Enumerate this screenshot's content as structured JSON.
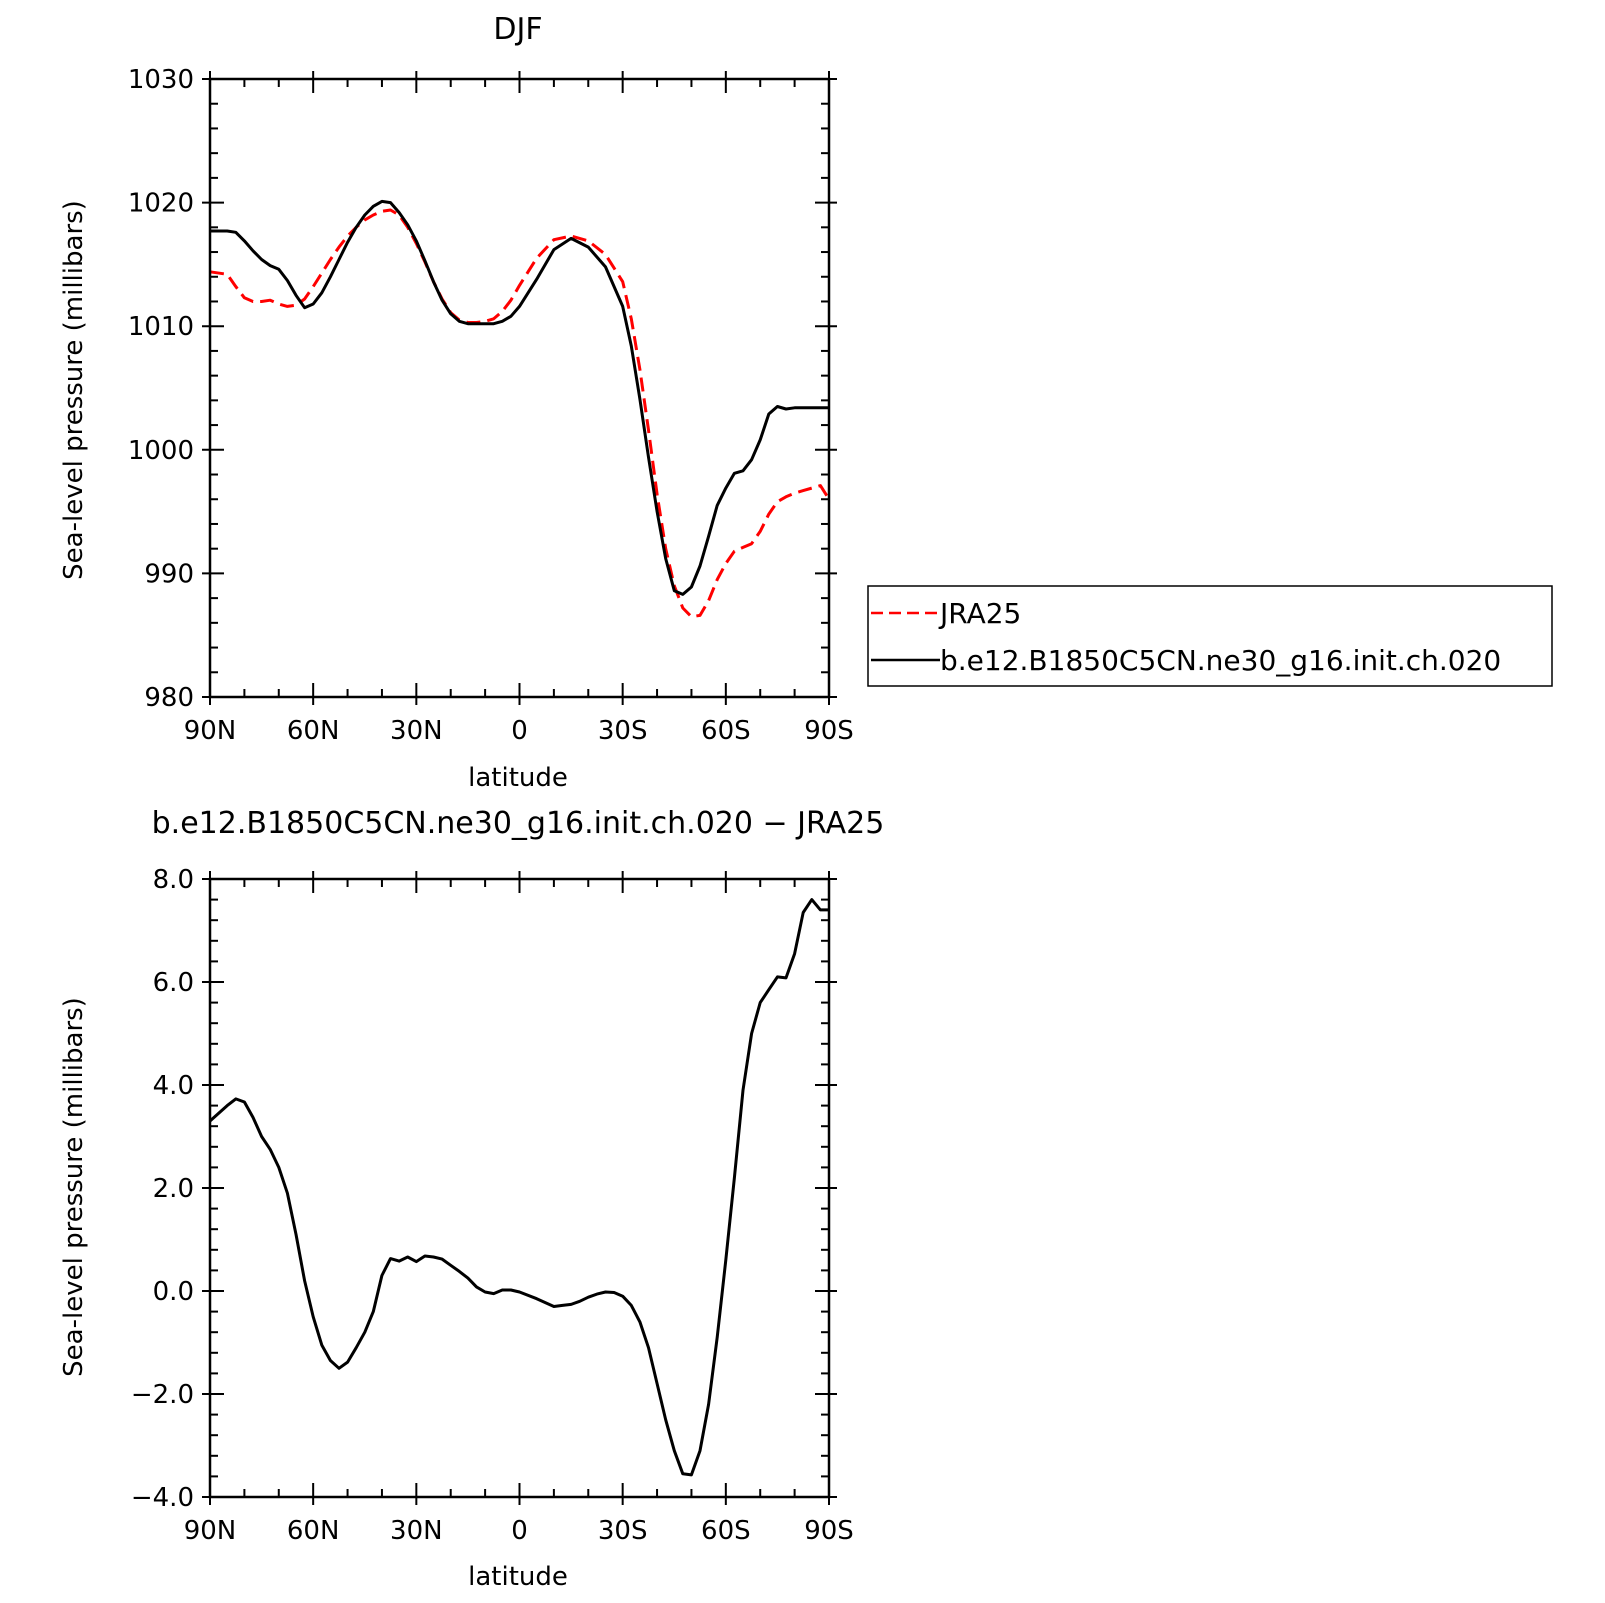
{
  "chart_data": [
    {
      "type": "line",
      "title": "DJF",
      "xlabel": "latitude",
      "ylabel": "Sea-level pressure (millibars)",
      "x_ticks": [
        {
          "value": 90,
          "label": "90N"
        },
        {
          "value": 60,
          "label": "60N"
        },
        {
          "value": 30,
          "label": "30N"
        },
        {
          "value": 0,
          "label": "0"
        },
        {
          "value": -30,
          "label": "30S"
        },
        {
          "value": -60,
          "label": "60S"
        },
        {
          "value": -90,
          "label": "90S"
        }
      ],
      "y_ticks": [
        {
          "value": 980,
          "label": "980"
        },
        {
          "value": 990,
          "label": "990"
        },
        {
          "value": 1000,
          "label": "1000"
        },
        {
          "value": 1010,
          "label": "1010"
        },
        {
          "value": 1020,
          "label": "1020"
        },
        {
          "value": 1030,
          "label": "1030"
        }
      ],
      "xlim": [
        90,
        -90
      ],
      "ylim": [
        980,
        1030
      ],
      "grid": false,
      "legend_position": "right",
      "series": [
        {
          "name": "JRA25",
          "color": "#ff0000",
          "dash": true,
          "x": [
            90,
            85,
            82.5,
            80,
            77.5,
            75,
            72.5,
            70,
            67.5,
            65,
            62.5,
            60,
            57.5,
            55,
            52.5,
            50,
            47.5,
            45,
            42.5,
            40,
            37.5,
            35,
            32.5,
            30,
            27.5,
            25,
            22.5,
            20,
            17.5,
            15,
            12.5,
            10,
            7.5,
            5,
            2.5,
            0,
            -5,
            -10,
            -15,
            -20,
            -25,
            -30,
            -32.5,
            -35,
            -37.5,
            -40,
            -42.5,
            -45,
            -47.5,
            -50,
            -52.5,
            -55,
            -57.5,
            -60,
            -62.5,
            -65,
            -67.5,
            -70,
            -72.5,
            -75,
            -77.5,
            -80,
            -82.5,
            -85,
            -87.5,
            -90
          ],
          "y": [
            1014.4,
            1014.2,
            1013.2,
            1012.3,
            1012.0,
            1012.0,
            1012.1,
            1011.8,
            1011.6,
            1011.7,
            1012.2,
            1013.2,
            1014.3,
            1015.4,
            1016.4,
            1017.3,
            1018.0,
            1018.6,
            1019.0,
            1019.3,
            1019.4,
            1019.0,
            1018.0,
            1016.7,
            1015.2,
            1013.6,
            1012.2,
            1011.1,
            1010.5,
            1010.3,
            1010.3,
            1010.4,
            1010.6,
            1011.2,
            1012.1,
            1013.3,
            1015.5,
            1017.0,
            1017.3,
            1016.9,
            1015.8,
            1013.6,
            1010.6,
            1006.5,
            1001.6,
            996.4,
            992.0,
            989.0,
            987.2,
            986.5,
            986.6,
            987.8,
            989.5,
            990.8,
            991.8,
            992.1,
            992.4,
            993.4,
            994.8,
            995.8,
            996.2,
            996.5,
            996.7,
            996.9,
            997.1,
            996.0
          ]
        },
        {
          "name": "b.e12.B1850C5CN.ne30_g16.init.ch.020",
          "color": "#000000",
          "dash": false,
          "x": [
            90,
            85,
            82.5,
            80,
            77.5,
            75,
            72.5,
            70,
            67.5,
            65,
            62.5,
            60,
            57.5,
            55,
            52.5,
            50,
            47.5,
            45,
            42.5,
            40,
            37.5,
            35,
            32.5,
            30,
            27.5,
            25,
            22.5,
            20,
            17.5,
            15,
            12.5,
            10,
            7.5,
            5,
            2.5,
            0,
            -5,
            -10,
            -15,
            -20,
            -25,
            -30,
            -32.5,
            -35,
            -37.5,
            -40,
            -42.5,
            -45,
            -47.5,
            -50,
            -52.5,
            -55,
            -57.5,
            -60,
            -62.5,
            -65,
            -67.5,
            -70,
            -72.5,
            -75,
            -77.5,
            -80,
            -82.5,
            -85,
            -87.5,
            -90
          ],
          "y": [
            1017.7,
            1017.7,
            1017.6,
            1016.9,
            1016.1,
            1015.4,
            1014.9,
            1014.6,
            1013.7,
            1012.5,
            1011.5,
            1011.8,
            1012.7,
            1014.0,
            1015.4,
            1016.8,
            1018.0,
            1019.0,
            1019.7,
            1020.1,
            1020.0,
            1019.2,
            1018.2,
            1016.9,
            1015.3,
            1013.6,
            1012.1,
            1011.0,
            1010.4,
            1010.2,
            1010.2,
            1010.2,
            1010.2,
            1010.4,
            1010.8,
            1011.6,
            1013.8,
            1016.2,
            1017.1,
            1016.4,
            1014.8,
            1011.6,
            1008.4,
            1004.1,
            999.4,
            995.0,
            991.2,
            988.6,
            988.3,
            988.9,
            990.6,
            993.0,
            995.5,
            996.9,
            998.1,
            998.3,
            999.2,
            1000.8,
            1002.9,
            1003.5,
            1003.3,
            1003.4,
            1003.4,
            1003.4,
            1003.4,
            1003.4
          ]
        }
      ]
    },
    {
      "type": "line",
      "title": "b.e12.B1850C5CN.ne30_g16.init.ch.020 − JRA25",
      "xlabel": "latitude",
      "ylabel": "Sea-level pressure (millibars)",
      "x_ticks": [
        {
          "value": 90,
          "label": "90N"
        },
        {
          "value": 60,
          "label": "60N"
        },
        {
          "value": 30,
          "label": "30N"
        },
        {
          "value": 0,
          "label": "0"
        },
        {
          "value": -30,
          "label": "30S"
        },
        {
          "value": -60,
          "label": "60S"
        },
        {
          "value": -90,
          "label": "90S"
        }
      ],
      "y_ticks": [
        {
          "value": -4,
          "label": "−4.0"
        },
        {
          "value": -2,
          "label": "−2.0"
        },
        {
          "value": 0,
          "label": "0.0"
        },
        {
          "value": 2,
          "label": "2.0"
        },
        {
          "value": 4,
          "label": "4.0"
        },
        {
          "value": 6,
          "label": "6.0"
        },
        {
          "value": 8,
          "label": "8.0"
        }
      ],
      "xlim": [
        90,
        -90
      ],
      "ylim": [
        -4,
        8
      ],
      "grid": false,
      "series": [
        {
          "color": "#000000",
          "x": [
            90,
            85,
            82.5,
            80,
            77.5,
            75,
            72.5,
            70,
            67.5,
            65,
            62.5,
            60,
            57.5,
            55,
            52.5,
            50,
            47.5,
            45,
            42.5,
            40,
            37.5,
            35,
            32.5,
            30,
            27.5,
            25,
            22.5,
            20,
            17.5,
            15,
            12.5,
            10,
            7.5,
            5,
            2.5,
            0,
            -5,
            -10,
            -12.5,
            -15,
            -17.5,
            -20,
            -22.5,
            -25,
            -27.5,
            -30,
            -32.5,
            -35,
            -37.5,
            -40,
            -42.5,
            -45,
            -47.5,
            -50,
            -52.5,
            -55,
            -57.5,
            -60,
            -62.5,
            -65,
            -67.5,
            -70,
            -72.5,
            -75,
            -77.5,
            -80,
            -82.5,
            -85,
            -87.5,
            -90
          ],
          "y": [
            3.3,
            3.6,
            3.73,
            3.67,
            3.37,
            3.0,
            2.75,
            2.4,
            1.9,
            1.1,
            0.2,
            -0.5,
            -1.05,
            -1.35,
            -1.5,
            -1.38,
            -1.1,
            -0.8,
            -0.4,
            0.3,
            0.63,
            0.58,
            0.66,
            0.57,
            0.68,
            0.66,
            0.62,
            0.5,
            0.38,
            0.25,
            0.08,
            -0.02,
            -0.05,
            0.02,
            0.02,
            -0.02,
            -0.15,
            -0.3,
            -0.28,
            -0.26,
            -0.2,
            -0.12,
            -0.06,
            -0.02,
            -0.03,
            -0.1,
            -0.28,
            -0.6,
            -1.1,
            -1.8,
            -2.5,
            -3.1,
            -3.55,
            -3.57,
            -3.1,
            -2.2,
            -0.9,
            0.6,
            2.2,
            3.9,
            5.0,
            5.6,
            5.85,
            6.1,
            6.08,
            6.55,
            7.35,
            7.6,
            7.4,
            7.4
          ]
        }
      ]
    }
  ]
}
